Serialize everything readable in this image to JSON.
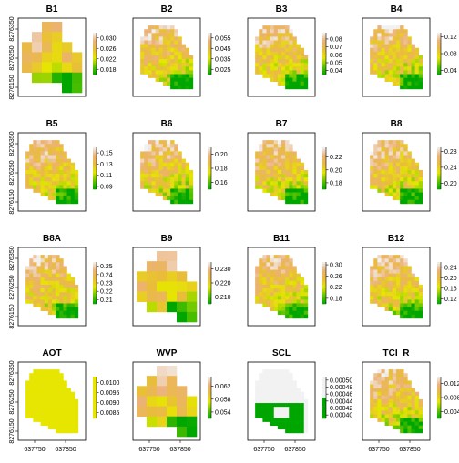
{
  "figure": {
    "colors": {
      "low": "#00a600",
      "mid_low": "#63c600",
      "mid": "#e6e600",
      "mid_high": "#e9bd3a",
      "high": "#ecb176",
      "top": "#f2f2f2"
    }
  },
  "chart_data": [
    {
      "title": "B1",
      "type": "heatmap",
      "legend_ticks": [
        "0.030",
        "0.026",
        "0.022",
        "0.018"
      ],
      "legend_range": [
        0.016,
        0.032
      ],
      "blocky": true,
      "y_ticks": [
        "8276350",
        "8276250",
        "8276150"
      ],
      "x_ticks": []
    },
    {
      "title": "B2",
      "type": "heatmap",
      "legend_ticks": [
        "0.055",
        "0.045",
        "0.035",
        "0.025"
      ],
      "legend_range": [
        0.02,
        0.06
      ],
      "y_ticks": [],
      "x_ticks": []
    },
    {
      "title": "B3",
      "type": "heatmap",
      "legend_ticks": [
        "0.08",
        "0.07",
        "0.06",
        "0.05",
        "0.04"
      ],
      "legend_range": [
        0.035,
        0.088
      ],
      "y_ticks": [],
      "x_ticks": []
    },
    {
      "title": "B4",
      "type": "heatmap",
      "legend_ticks": [
        "0.12",
        "0.08",
        "0.04"
      ],
      "legend_range": [
        0.03,
        0.13
      ],
      "y_ticks": [],
      "x_ticks": []
    },
    {
      "title": "B5",
      "type": "heatmap",
      "legend_ticks": [
        "0.15",
        "0.13",
        "0.11",
        "0.09"
      ],
      "legend_range": [
        0.085,
        0.16
      ],
      "y_ticks": [
        "8276350",
        "8276250",
        "8276150"
      ],
      "x_ticks": []
    },
    {
      "title": "B6",
      "type": "heatmap",
      "legend_ticks": [
        "0.20",
        "0.18",
        "0.16"
      ],
      "legend_range": [
        0.15,
        0.21
      ],
      "y_ticks": [],
      "x_ticks": []
    },
    {
      "title": "B7",
      "type": "heatmap",
      "legend_ticks": [
        "0.22",
        "0.20",
        "0.18"
      ],
      "legend_range": [
        0.17,
        0.235
      ],
      "y_ticks": [],
      "x_ticks": []
    },
    {
      "title": "B8",
      "type": "heatmap",
      "legend_ticks": [
        "0.28",
        "0.24",
        "0.20"
      ],
      "legend_range": [
        0.185,
        0.29
      ],
      "y_ticks": [],
      "x_ticks": []
    },
    {
      "title": "B8A",
      "type": "heatmap",
      "legend_ticks": [
        "0.25",
        "0.24",
        "0.23",
        "0.22",
        "0.21"
      ],
      "legend_range": [
        0.205,
        0.255
      ],
      "y_ticks": [
        "8276350",
        "8276250",
        "8276150"
      ],
      "x_ticks": []
    },
    {
      "title": "B9",
      "type": "heatmap",
      "legend_ticks": [
        "0.230",
        "0.220",
        "0.210"
      ],
      "legend_range": [
        0.205,
        0.235
      ],
      "blocky": true,
      "y_ticks": [],
      "x_ticks": []
    },
    {
      "title": "B11",
      "type": "heatmap",
      "legend_ticks": [
        "0.30",
        "0.26",
        "0.22",
        "0.18"
      ],
      "legend_range": [
        0.16,
        0.31
      ],
      "y_ticks": [],
      "x_ticks": []
    },
    {
      "title": "B12",
      "type": "heatmap",
      "legend_ticks": [
        "0.24",
        "0.20",
        "0.16",
        "0.12"
      ],
      "legend_range": [
        0.1,
        0.26
      ],
      "y_ticks": [],
      "x_ticks": []
    },
    {
      "title": "AOT",
      "type": "heatmap",
      "legend_ticks": [
        "0.0100",
        "0.0095",
        "0.0090",
        "0.0085"
      ],
      "legend_range": [
        0.0082,
        0.0103
      ],
      "uniform": "mid",
      "y_ticks": [
        "8276350",
        "8276250",
        "8276150"
      ],
      "x_ticks": [
        "637750",
        "637850"
      ]
    },
    {
      "title": "WVP",
      "type": "heatmap",
      "legend_ticks": [
        "0.062",
        "0.058",
        "0.054"
      ],
      "legend_range": [
        0.052,
        0.065
      ],
      "blocky": true,
      "y_ticks": [],
      "x_ticks": [
        "637750",
        "637850"
      ]
    },
    {
      "title": "SCL",
      "type": "heatmap",
      "legend_ticks": [
        "0.00050",
        "0.00048",
        "0.00046",
        "0.00044",
        "0.00042",
        "0.00040"
      ],
      "legend_range": [
        0.00039,
        0.00051
      ],
      "binary": true,
      "y_ticks": [],
      "x_ticks": [
        "637750",
        "637850"
      ]
    },
    {
      "title": "TCI_R",
      "type": "heatmap",
      "legend_ticks": [
        "0.012",
        "0.008",
        "0.004"
      ],
      "legend_range": [
        0.002,
        0.014
      ],
      "y_ticks": [],
      "x_ticks": [
        "637750",
        "637850"
      ]
    }
  ]
}
